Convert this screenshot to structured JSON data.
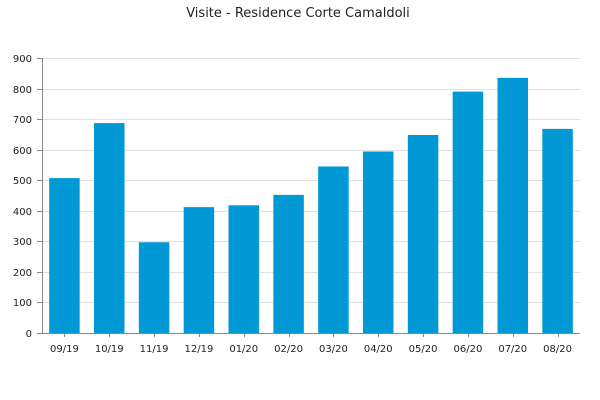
{
  "chart_data": {
    "type": "bar",
    "title": "Visite - Residence Corte Camaldoli",
    "xlabel": "",
    "ylabel": "",
    "categories": [
      "09/19",
      "10/19",
      "11/19",
      "12/19",
      "01/20",
      "02/20",
      "03/20",
      "04/20",
      "05/20",
      "06/20",
      "07/20",
      "08/20"
    ],
    "values": [
      507,
      687,
      297,
      412,
      418,
      452,
      545,
      594,
      648,
      790,
      835,
      668
    ],
    "ylim": [
      0,
      900
    ],
    "yticks": [
      0,
      100,
      200,
      300,
      400,
      500,
      600,
      700,
      800,
      900
    ],
    "grid": true,
    "legend": "none",
    "colors": {
      "bar": "#0099d6",
      "grid": "#e0e0e0",
      "axis": "#888888",
      "text": "#222222"
    }
  }
}
